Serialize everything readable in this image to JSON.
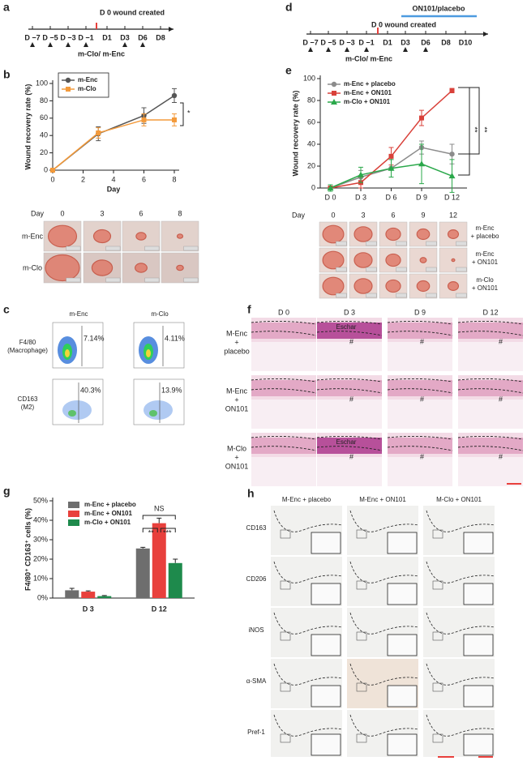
{
  "letters": [
    "a",
    "b",
    "c",
    "d",
    "e",
    "f",
    "g",
    "h"
  ],
  "timeline_a": {
    "created": "D 0 wound created",
    "days": [
      "D −7",
      "D −5",
      "D −3",
      "D −1",
      "D1",
      "D3",
      "D6",
      "D8"
    ],
    "group": "m-Clo/ m-Enc"
  },
  "timeline_d": {
    "treatment": "ON101/placebo",
    "created": "D 0 wound created",
    "days": [
      "D −7",
      "D −5",
      "D −3",
      "D −1",
      "D1",
      "D3",
      "D6",
      "D8",
      "D10"
    ],
    "group": "m-Clo/ m-Enc"
  },
  "chart_data": [
    {
      "type": "line",
      "ylabel": "Wound recovery rate (%)",
      "xlabel": "Day",
      "legend": "upper left",
      "x": [
        0,
        3,
        6,
        8
      ],
      "series": [
        {
          "name": "m-Enc",
          "color": "#555555",
          "marker": "circle",
          "values": [
            0,
            42,
            63,
            86
          ],
          "errors": [
            0,
            8,
            9,
            8
          ]
        },
        {
          "name": "m-Clo",
          "color": "#f39a3b",
          "marker": "square",
          "values": [
            0,
            43,
            58,
            58
          ],
          "errors": [
            0,
            6,
            7,
            7
          ]
        }
      ],
      "xlim": [
        0,
        8
      ],
      "xticks": [
        0,
        2,
        4,
        6,
        8
      ],
      "ylim": [
        0,
        100
      ],
      "yticks": [
        0,
        20,
        40,
        60,
        80,
        100
      ],
      "annotations": [
        "*"
      ]
    },
    {
      "type": "line",
      "ylabel": "Wound recovery rate (%)",
      "legend": "upper left",
      "x": [
        0,
        3,
        6,
        9,
        12
      ],
      "series": [
        {
          "name": "m-Enc + placebo",
          "color": "#8c8c8c",
          "marker": "circle",
          "values": [
            0,
            10,
            18,
            37,
            31
          ],
          "errors": [
            3,
            6,
            8,
            6,
            9
          ]
        },
        {
          "name": "m-Enc + ON101",
          "color": "#d9413a",
          "marker": "square",
          "values": [
            0,
            5,
            29,
            64,
            89
          ],
          "errors": [
            3,
            5,
            8,
            7,
            2
          ]
        },
        {
          "name": "m-Clo + ON101",
          "color": "#2aa84a",
          "marker": "triangle",
          "values": [
            0,
            12,
            18,
            22,
            11
          ],
          "errors": [
            3,
            7,
            8,
            18,
            15
          ]
        }
      ],
      "xlim": [
        -1,
        13
      ],
      "xticks": [
        {
          "value": 0,
          "label": "D 0"
        },
        {
          "value": 3,
          "label": "D 3"
        },
        {
          "value": 6,
          "label": "D 6"
        },
        {
          "value": 9,
          "label": "D 9"
        },
        {
          "value": 12,
          "label": "D 12"
        }
      ],
      "ylim": [
        0,
        100
      ],
      "yticks": [
        0,
        20,
        40,
        60,
        80,
        100
      ],
      "annotations": [
        "**",
        "**"
      ]
    },
    {
      "type": "bar",
      "ylabel": "F4/80⁺ CD163⁺ cells (%)",
      "legend": "upper left",
      "categories": [
        "D 3",
        "D 12"
      ],
      "series": [
        {
          "name": "m-Enc + placebo",
          "color": "#6e6e6e",
          "values": [
            4,
            25.5
          ],
          "errors": [
            1,
            0.6
          ]
        },
        {
          "name": "m-Enc + ON101",
          "color": "#e8403c",
          "values": [
            3.3,
            38.5
          ],
          "errors": [
            0.4,
            2.6
          ]
        },
        {
          "name": "m-Clo + ON101",
          "color": "#1e8a4c",
          "values": [
            1,
            18
          ],
          "errors": [
            0.3,
            2
          ]
        }
      ],
      "ylim": [
        0,
        50
      ],
      "yticks": [
        {
          "value": 0,
          "label": "0%"
        },
        {
          "value": 10,
          "label": "10%"
        },
        {
          "value": 20,
          "label": "20%"
        },
        {
          "value": 30,
          "label": "30%"
        },
        {
          "value": 40,
          "label": "40%"
        },
        {
          "value": 50,
          "label": "50%"
        }
      ],
      "annotations": [
        "NS",
        "**",
        "***"
      ]
    }
  ],
  "photos_b": {
    "day_label": "Day",
    "days": [
      "0",
      "3",
      "6",
      "8"
    ],
    "rows": [
      "m-Enc",
      "m-Clo"
    ]
  },
  "flow_c": {
    "columns": [
      "m-Enc",
      "m-Clo"
    ],
    "rows": [
      [
        "F4/80",
        "(Macrophage)"
      ],
      [
        "CD163",
        "(M2)"
      ]
    ],
    "gates": [
      [
        {
          "label": "7.14%",
          "color": "#555555"
        },
        {
          "label": "4.11%",
          "color": "#555555"
        }
      ],
      [
        {
          "label": "40.3%",
          "color": "#555555"
        },
        {
          "label": "13.9%",
          "color": "#e8403c"
        }
      ]
    ]
  },
  "photos_e": {
    "day_label": "Day",
    "days": [
      "0",
      "3",
      "6",
      "9",
      "12"
    ],
    "rows": [
      [
        "m-Enc",
        "+ placebo"
      ],
      [
        "m-Enc",
        "+ ON101"
      ],
      [
        "m-Clo",
        "+ ON101"
      ]
    ]
  },
  "histology_f": {
    "columns": [
      "D 0",
      "D 3",
      "D 9",
      "D 12"
    ],
    "rows": [
      [
        "M-Enc",
        "+",
        "placebo"
      ],
      [
        "M-Enc",
        "+",
        "ON101"
      ],
      [
        "M-Clo",
        "+",
        "ON101"
      ]
    ],
    "eschar": "Eschar",
    "mark": "#"
  },
  "ihc_h": {
    "columns": [
      "M-Enc + placebo",
      "M-Enc + ON101",
      "M-Clo + ON101"
    ],
    "rows": [
      "CD163",
      "CD206",
      "iNOS",
      "α-SMA",
      "Pref-1"
    ]
  }
}
